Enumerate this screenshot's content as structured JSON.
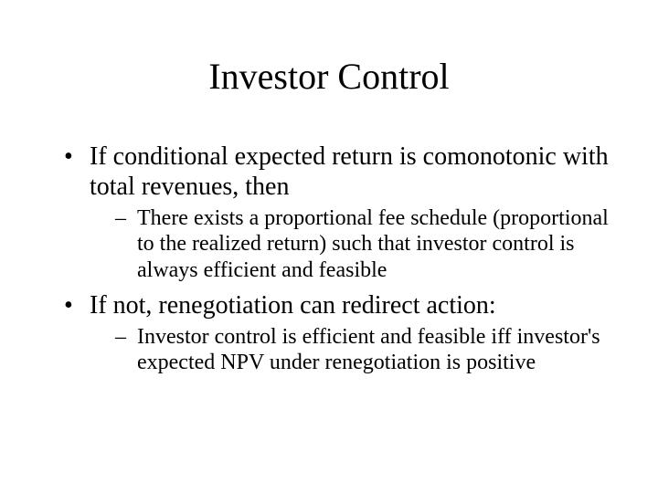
{
  "slide": {
    "title": "Investor Control",
    "title_fontsize": 40,
    "body_fontsize_l1": 28,
    "body_fontsize_l2": 24,
    "text_color": "#000000",
    "background_color": "#ffffff",
    "font_family": "Times New Roman",
    "bullets": [
      {
        "text": "If conditional expected return is comonotonic with total revenues, then",
        "sub": [
          {
            "text": "There exists a proportional fee schedule (proportional to the realized return) such that investor control is always efficient and feasible"
          }
        ]
      },
      {
        "text": "If not, renegotiation can redirect action:",
        "sub": [
          {
            "text": "Investor control is efficient and feasible iff investor's expected NPV under renegotiation is positive"
          }
        ]
      }
    ]
  }
}
